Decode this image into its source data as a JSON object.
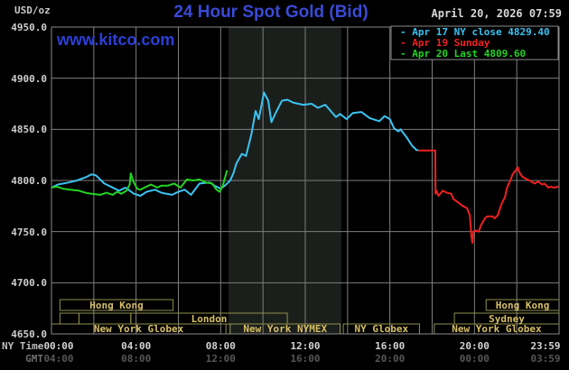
{
  "header": {
    "unit_label": "USD/oz",
    "title": "24 Hour Spot Gold (Bid)",
    "datetime": "April 20, 2026 07:59",
    "watermark": "www.kitco.com"
  },
  "legend": {
    "items": [
      {
        "label": "Apr 17 NY close 4829.40",
        "color": "#3bc3f2"
      },
      {
        "label": "Apr 19 Sunday",
        "color": "#f02020"
      },
      {
        "label": "Apr 20 Last 4809.60",
        "color": "#22d522"
      }
    ]
  },
  "axes": {
    "ny_label": "NY Time",
    "gmt_label": "GMT",
    "ny_ticks": [
      "00:00",
      "04:00",
      "08:00",
      "12:00",
      "16:00",
      "20:00",
      "23:59"
    ],
    "gmt_ticks": [
      "04:00",
      "08:00",
      "12:00",
      "16:00",
      "20:00",
      "00:00",
      "03:59"
    ],
    "tick_hours": [
      0,
      4,
      8,
      12,
      16,
      20,
      23.98
    ],
    "y_ticks": [
      "4950.0",
      "4900.0",
      "4850.0",
      "4800.0",
      "4750.0",
      "4700.0",
      "4650.0"
    ],
    "y_tick_values": [
      4950,
      4900,
      4850,
      4800,
      4750,
      4700,
      4650
    ]
  },
  "sessions": [
    {
      "row": 1,
      "start": 0.4,
      "end": 5.75,
      "label": "Hong Kong"
    },
    {
      "row": 1,
      "start": 20.55,
      "end": 24,
      "label": "Hong Kong"
    },
    {
      "row": 2,
      "start": 0.4,
      "end": 1.3,
      "label": ""
    },
    {
      "row": 2,
      "start": 1.3,
      "end": 3.75,
      "label": ""
    },
    {
      "row": 2,
      "start": 3.75,
      "end": 11.15,
      "label": "London"
    },
    {
      "row": 2,
      "start": 19.05,
      "end": 24,
      "label": "Sydney"
    },
    {
      "row": 3,
      "start": 0,
      "end": 8.25,
      "label": "New York Globex"
    },
    {
      "row": 3,
      "start": 8.45,
      "end": 13.65,
      "label": "New York NYMEX"
    },
    {
      "row": 3,
      "start": 13.8,
      "end": 17.4,
      "label": "NY Globex"
    },
    {
      "row": 3,
      "start": 18.1,
      "end": 24,
      "label": "New York Globex"
    }
  ],
  "colors": {
    "background": "#000000",
    "grid": "#7e7e7e",
    "border": "#8a8a8a",
    "shaded_region": "#1b1f1b",
    "session_border": "#91914d",
    "session_text": "#d7bf66",
    "title_blue": "#3a4ad6",
    "apr17": "#3bc3f2",
    "apr19": "#f02020",
    "apr20": "#22d522"
  },
  "chart_data": {
    "type": "line",
    "title": "24 Hour Spot Gold (Bid)",
    "x_axis": {
      "unit": "hours NY time",
      "range": [
        0,
        24
      ],
      "gridline_every_hours": 2
    },
    "y_axis": {
      "unit": "USD/oz",
      "range": [
        4650,
        4950
      ],
      "tick_step": 50,
      "grid": true
    },
    "shaded_region_hours": [
      8.37,
      13.7
    ],
    "ny_close_value": 4829.4,
    "last_value": 4809.6,
    "series": [
      {
        "name": "Apr 17 NY close 4829.40",
        "color": "#3bc3f2",
        "points": [
          [
            0,
            4793
          ],
          [
            0.3,
            4796
          ],
          [
            0.8,
            4798
          ],
          [
            1.2,
            4800
          ],
          [
            1.6,
            4803
          ],
          [
            1.9,
            4806
          ],
          [
            2.1,
            4805
          ],
          [
            2.5,
            4797
          ],
          [
            2.8,
            4794
          ],
          [
            3.2,
            4790
          ],
          [
            3.5,
            4793
          ],
          [
            3.9,
            4787
          ],
          [
            4.2,
            4785
          ],
          [
            4.5,
            4789
          ],
          [
            4.9,
            4791
          ],
          [
            5.2,
            4788
          ],
          [
            5.7,
            4786
          ],
          [
            6.0,
            4789
          ],
          [
            6.3,
            4791
          ],
          [
            6.6,
            4786
          ],
          [
            7.0,
            4797
          ],
          [
            7.5,
            4798
          ],
          [
            7.7,
            4795
          ],
          [
            8.0,
            4792
          ],
          [
            8.2,
            4795
          ],
          [
            8.45,
            4800
          ],
          [
            8.6,
            4807
          ],
          [
            8.75,
            4817
          ],
          [
            9.0,
            4826
          ],
          [
            9.2,
            4824
          ],
          [
            9.45,
            4845
          ],
          [
            9.65,
            4868
          ],
          [
            9.8,
            4860
          ],
          [
            10.05,
            4886
          ],
          [
            10.25,
            4878
          ],
          [
            10.4,
            4857
          ],
          [
            10.6,
            4866
          ],
          [
            10.9,
            4878
          ],
          [
            11.15,
            4879
          ],
          [
            11.45,
            4876
          ],
          [
            11.9,
            4874
          ],
          [
            12.3,
            4875
          ],
          [
            12.6,
            4871
          ],
          [
            12.95,
            4874
          ],
          [
            13.2,
            4868
          ],
          [
            13.45,
            4862
          ],
          [
            13.65,
            4865
          ],
          [
            13.95,
            4860
          ],
          [
            14.25,
            4866
          ],
          [
            14.65,
            4867
          ],
          [
            15.05,
            4861
          ],
          [
            15.5,
            4858
          ],
          [
            15.75,
            4863
          ],
          [
            16.0,
            4860
          ],
          [
            16.2,
            4851
          ],
          [
            16.4,
            4848
          ],
          [
            16.5,
            4850
          ],
          [
            16.8,
            4842
          ],
          [
            17.05,
            4834
          ],
          [
            17.25,
            4830
          ],
          [
            17.35,
            4829.4
          ]
        ]
      },
      {
        "name": "Apr 19 Sunday",
        "color": "#f02020",
        "points": [
          [
            17.35,
            4829.4
          ],
          [
            18.15,
            4829.4
          ],
          [
            18.16,
            4787
          ],
          [
            18.2,
            4790
          ],
          [
            18.3,
            4785
          ],
          [
            18.5,
            4790
          ],
          [
            18.7,
            4788
          ],
          [
            18.9,
            4787
          ],
          [
            19.0,
            4782
          ],
          [
            19.2,
            4779
          ],
          [
            19.45,
            4775
          ],
          [
            19.65,
            4773
          ],
          [
            19.78,
            4766
          ],
          [
            19.85,
            4747
          ],
          [
            19.9,
            4739
          ],
          [
            19.95,
            4750
          ],
          [
            20.05,
            4751
          ],
          [
            20.2,
            4750
          ],
          [
            20.3,
            4756
          ],
          [
            20.5,
            4763
          ],
          [
            20.6,
            4765
          ],
          [
            20.85,
            4765
          ],
          [
            20.95,
            4763
          ],
          [
            21.1,
            4766
          ],
          [
            21.2,
            4772
          ],
          [
            21.3,
            4778
          ],
          [
            21.45,
            4784
          ],
          [
            21.5,
            4790
          ],
          [
            21.6,
            4796
          ],
          [
            21.7,
            4800
          ],
          [
            21.8,
            4806
          ],
          [
            21.95,
            4810
          ],
          [
            22.05,
            4813
          ],
          [
            22.1,
            4809
          ],
          [
            22.25,
            4804
          ],
          [
            22.4,
            4802
          ],
          [
            22.6,
            4800
          ],
          [
            22.85,
            4797
          ],
          [
            23.0,
            4799
          ],
          [
            23.2,
            4796
          ],
          [
            23.3,
            4797
          ],
          [
            23.5,
            4793
          ],
          [
            23.6,
            4794
          ],
          [
            23.75,
            4793
          ],
          [
            23.98,
            4794
          ]
        ]
      },
      {
        "name": "Apr 20 Last 4809.60",
        "color": "#22d522",
        "points": [
          [
            0,
            4793
          ],
          [
            0.25,
            4794
          ],
          [
            0.55,
            4792
          ],
          [
            0.9,
            4791
          ],
          [
            1.3,
            4790
          ],
          [
            1.6,
            4788
          ],
          [
            1.9,
            4787
          ],
          [
            2.3,
            4786
          ],
          [
            2.6,
            4788
          ],
          [
            2.9,
            4786
          ],
          [
            3.1,
            4789
          ],
          [
            3.3,
            4787
          ],
          [
            3.55,
            4790
          ],
          [
            3.7,
            4796
          ],
          [
            3.75,
            4807
          ],
          [
            3.85,
            4800
          ],
          [
            4.05,
            4792
          ],
          [
            4.2,
            4791
          ],
          [
            4.4,
            4793
          ],
          [
            4.7,
            4796
          ],
          [
            5.0,
            4793
          ],
          [
            5.2,
            4795
          ],
          [
            5.5,
            4795
          ],
          [
            5.8,
            4797
          ],
          [
            6.1,
            4793
          ],
          [
            6.4,
            4801
          ],
          [
            6.7,
            4800
          ],
          [
            7.0,
            4801
          ],
          [
            7.3,
            4798
          ],
          [
            7.6,
            4797
          ],
          [
            7.8,
            4791
          ],
          [
            7.95,
            4789
          ],
          [
            8.1,
            4795
          ],
          [
            8.3,
            4810
          ]
        ]
      }
    ]
  }
}
